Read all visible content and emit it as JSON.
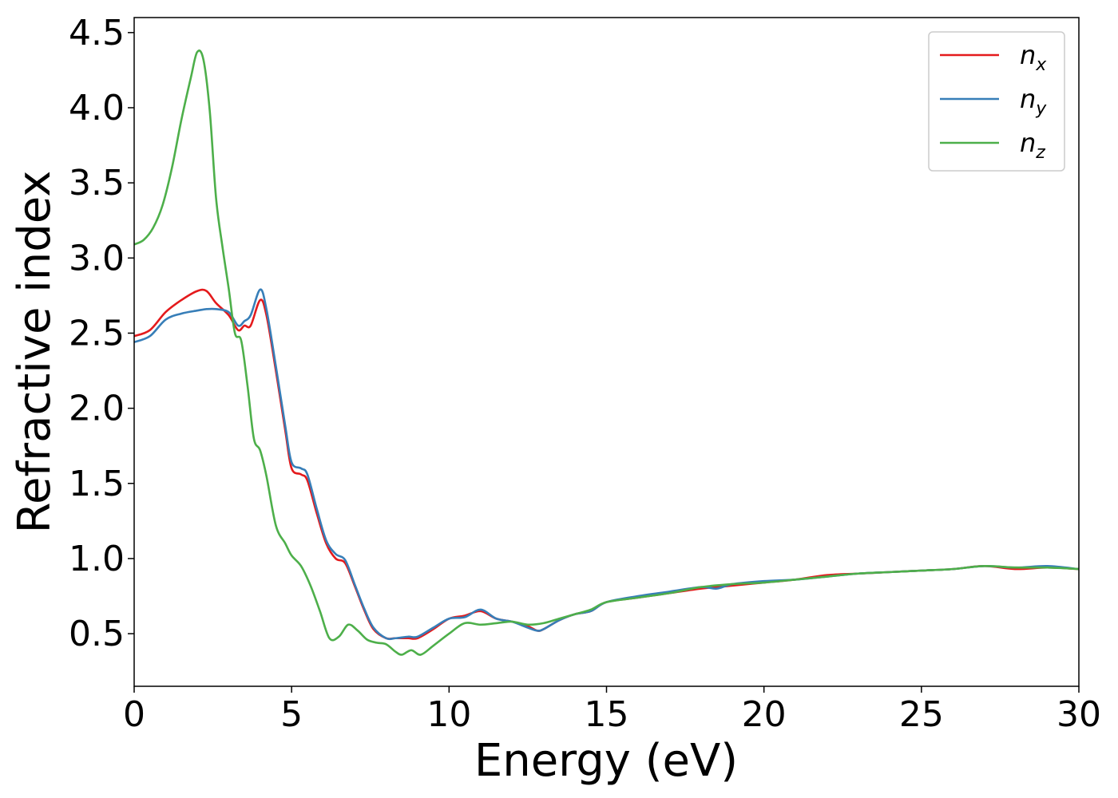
{
  "chart_data": {
    "type": "line",
    "title": "",
    "xlabel": "Energy (eV)",
    "ylabel": "Refractive index",
    "xlim": [
      0,
      30
    ],
    "ylim": [
      0.15,
      4.6
    ],
    "xticks": [
      0,
      5,
      10,
      15,
      20,
      25,
      30
    ],
    "yticks": [
      0.5,
      1.0,
      1.5,
      2.0,
      2.5,
      3.0,
      3.5,
      4.0,
      4.5
    ],
    "grid": false,
    "legend_position": "top-right",
    "series": [
      {
        "name": "n_x",
        "label_main": "n",
        "label_sub": "x",
        "color": "#e41a1c",
        "x": [
          0,
          0.5,
          1.0,
          1.5,
          2.0,
          2.3,
          2.6,
          3.0,
          3.3,
          3.5,
          3.7,
          4.0,
          4.2,
          4.5,
          4.8,
          5.0,
          5.3,
          5.5,
          5.8,
          6.1,
          6.4,
          6.7,
          7.0,
          7.3,
          7.6,
          8.0,
          8.3,
          8.7,
          9.0,
          9.5,
          10.0,
          10.5,
          11.0,
          11.5,
          12.0,
          12.5,
          12.8,
          13.0,
          13.5,
          14.0,
          14.5,
          15.0,
          16.0,
          17.0,
          18.0,
          18.5,
          19.0,
          20.0,
          21.0,
          22.0,
          23.0,
          24.0,
          25.0,
          26.0,
          27.0,
          28.0,
          29.0,
          30.0
        ],
        "y": [
          2.48,
          2.52,
          2.64,
          2.72,
          2.78,
          2.78,
          2.7,
          2.62,
          2.52,
          2.55,
          2.55,
          2.72,
          2.62,
          2.25,
          1.85,
          1.6,
          1.56,
          1.52,
          1.3,
          1.1,
          1.0,
          0.97,
          0.82,
          0.66,
          0.53,
          0.47,
          0.47,
          0.47,
          0.47,
          0.53,
          0.6,
          0.62,
          0.65,
          0.6,
          0.58,
          0.55,
          0.52,
          0.53,
          0.59,
          0.63,
          0.65,
          0.71,
          0.74,
          0.77,
          0.8,
          0.81,
          0.82,
          0.84,
          0.86,
          0.89,
          0.9,
          0.91,
          0.92,
          0.93,
          0.95,
          0.93,
          0.94,
          0.93
        ]
      },
      {
        "name": "n_y",
        "label_main": "n",
        "label_sub": "y",
        "color": "#377eb8",
        "x": [
          0,
          0.5,
          1.0,
          1.5,
          2.0,
          2.3,
          2.6,
          3.0,
          3.3,
          3.5,
          3.7,
          4.0,
          4.2,
          4.5,
          4.8,
          5.0,
          5.3,
          5.5,
          5.8,
          6.1,
          6.4,
          6.7,
          7.0,
          7.3,
          7.6,
          8.0,
          8.3,
          8.7,
          9.0,
          9.5,
          10.0,
          10.5,
          11.0,
          11.5,
          12.0,
          12.5,
          12.8,
          13.0,
          13.5,
          14.0,
          14.5,
          15.0,
          16.0,
          17.0,
          18.0,
          18.5,
          19.0,
          20.0,
          21.0,
          22.0,
          23.0,
          24.0,
          25.0,
          26.0,
          27.0,
          28.0,
          29.0,
          30.0
        ],
        "y": [
          2.44,
          2.48,
          2.59,
          2.63,
          2.65,
          2.66,
          2.66,
          2.64,
          2.55,
          2.58,
          2.62,
          2.79,
          2.66,
          2.28,
          1.88,
          1.64,
          1.6,
          1.56,
          1.33,
          1.12,
          1.03,
          0.99,
          0.83,
          0.67,
          0.54,
          0.47,
          0.47,
          0.48,
          0.48,
          0.54,
          0.6,
          0.61,
          0.66,
          0.6,
          0.58,
          0.54,
          0.52,
          0.53,
          0.59,
          0.63,
          0.65,
          0.71,
          0.75,
          0.78,
          0.81,
          0.8,
          0.83,
          0.85,
          0.86,
          0.88,
          0.9,
          0.91,
          0.92,
          0.93,
          0.95,
          0.94,
          0.95,
          0.93
        ]
      },
      {
        "name": "n_z",
        "label_main": "n",
        "label_sub": "z",
        "color": "#4daf4a",
        "x": [
          0,
          0.3,
          0.6,
          0.9,
          1.2,
          1.5,
          1.8,
          2.0,
          2.2,
          2.4,
          2.6,
          2.8,
          3.0,
          3.2,
          3.4,
          3.6,
          3.8,
          4.0,
          4.2,
          4.5,
          4.8,
          5.0,
          5.3,
          5.6,
          5.9,
          6.2,
          6.5,
          6.8,
          7.1,
          7.4,
          7.7,
          8.0,
          8.3,
          8.5,
          8.8,
          9.1,
          9.5,
          10.0,
          10.5,
          11.0,
          11.5,
          12.0,
          12.5,
          13.0,
          13.5,
          14.0,
          14.5,
          15.0,
          16.0,
          17.0,
          18.0,
          19.0,
          20.0,
          21.0,
          22.0,
          23.0,
          24.0,
          25.0,
          26.0,
          27.0,
          28.0,
          29.0,
          30.0
        ],
        "y": [
          3.09,
          3.12,
          3.2,
          3.35,
          3.6,
          3.92,
          4.2,
          4.37,
          4.32,
          3.98,
          3.4,
          3.08,
          2.8,
          2.5,
          2.45,
          2.15,
          1.8,
          1.72,
          1.55,
          1.22,
          1.1,
          1.02,
          0.95,
          0.82,
          0.65,
          0.47,
          0.48,
          0.56,
          0.52,
          0.46,
          0.44,
          0.43,
          0.38,
          0.36,
          0.39,
          0.36,
          0.42,
          0.5,
          0.57,
          0.56,
          0.57,
          0.58,
          0.56,
          0.57,
          0.6,
          0.63,
          0.66,
          0.71,
          0.74,
          0.77,
          0.81,
          0.83,
          0.84,
          0.86,
          0.88,
          0.9,
          0.91,
          0.92,
          0.93,
          0.95,
          0.94,
          0.94,
          0.93
        ]
      }
    ]
  }
}
